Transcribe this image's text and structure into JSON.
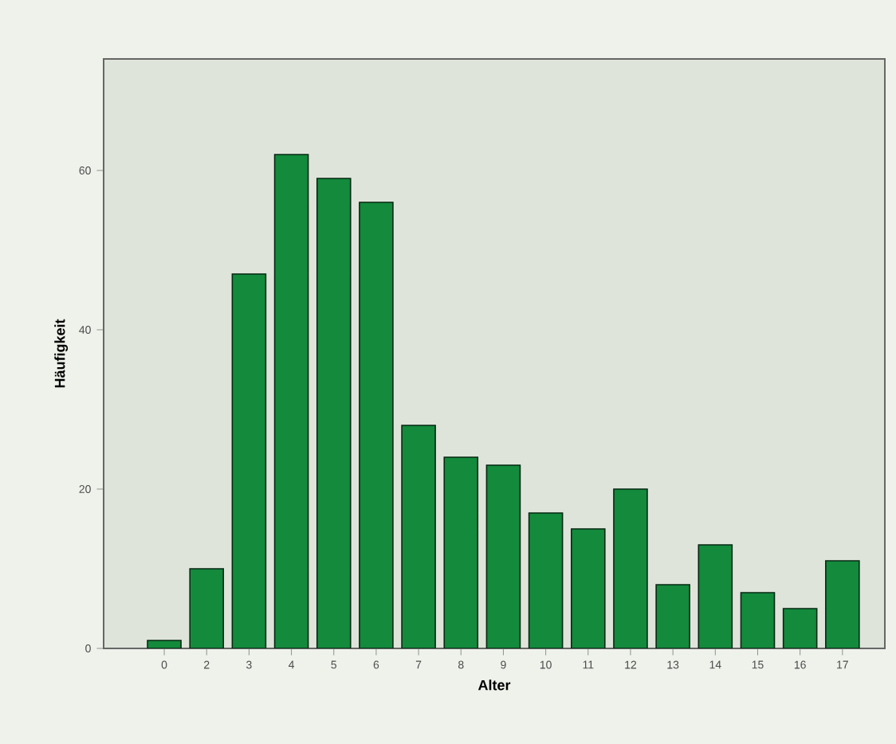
{
  "chart_data": {
    "type": "bar",
    "xlabel": "Alter",
    "ylabel": "Häufigkeit",
    "categories": [
      "0",
      "2",
      "3",
      "4",
      "5",
      "6",
      "7",
      "8",
      "9",
      "10",
      "11",
      "12",
      "13",
      "14",
      "15",
      "16",
      "17"
    ],
    "values": [
      1,
      10,
      47,
      62,
      59,
      56,
      28,
      24,
      23,
      17,
      15,
      20,
      8,
      13,
      7,
      5,
      11
    ],
    "color": "#138a3c",
    "ylim": [
      0,
      74
    ],
    "yticks": [
      0,
      20,
      40,
      60
    ],
    "grid": false
  }
}
